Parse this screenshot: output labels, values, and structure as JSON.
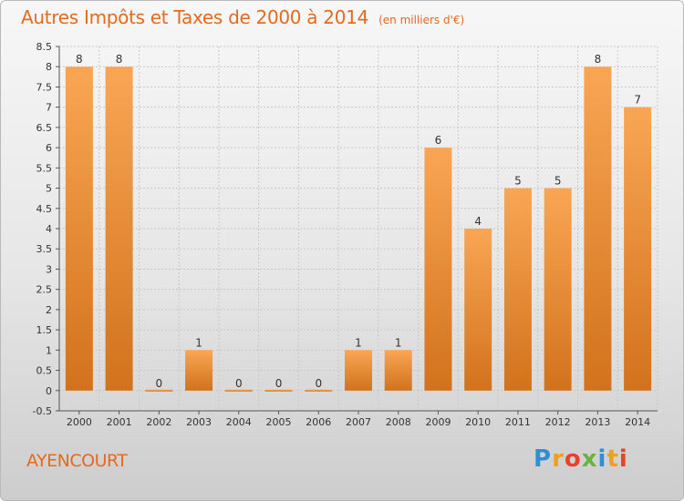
{
  "header": {
    "title": "Autres Impôts et Taxes de 2000 à 2014",
    "subtitle": "(en milliers d'€)"
  },
  "footer": {
    "commune": "AYENCOURT",
    "logo": "Proxiti"
  },
  "colors": {
    "title": "#e46a1c",
    "bar_light": "#f9a654",
    "bar_dark": "#d2721c",
    "axis": "#555555",
    "grid": "#c8c8c8"
  },
  "chart_data": {
    "type": "bar",
    "title": "Autres Impôts et Taxes de 2000 à 2014",
    "subtitle": "(en milliers d'€)",
    "categories": [
      "2000",
      "2001",
      "2002",
      "2003",
      "2004",
      "2005",
      "2006",
      "2007",
      "2008",
      "2009",
      "2010",
      "2011",
      "2012",
      "2013",
      "2014"
    ],
    "values": [
      8,
      8,
      0,
      1,
      0,
      0,
      0,
      1,
      1,
      6,
      4,
      5,
      5,
      8,
      7
    ],
    "data_labels": [
      "8",
      "8",
      "0",
      "1",
      "0",
      "0",
      "0",
      "1",
      "1",
      "6",
      "4",
      "5",
      "5",
      "8",
      "7"
    ],
    "ylim": [
      -0.5,
      8.5
    ],
    "yticks": [
      -0.5,
      0,
      0.5,
      1,
      1.5,
      2,
      2.5,
      3,
      3.5,
      4,
      4.5,
      5,
      5.5,
      6,
      6.5,
      7,
      7.5,
      8,
      8.5
    ],
    "ytick_labels": [
      "-0.5",
      "0",
      "0.5",
      "1",
      "1.5",
      "2",
      "2.5",
      "3",
      "3.5",
      "4",
      "4.5",
      "5",
      "5.5",
      "6",
      "6.5",
      "7",
      "7.5",
      "8",
      "8.5"
    ],
    "xlabel": "",
    "ylabel": "",
    "grid": true,
    "legend": "none"
  }
}
